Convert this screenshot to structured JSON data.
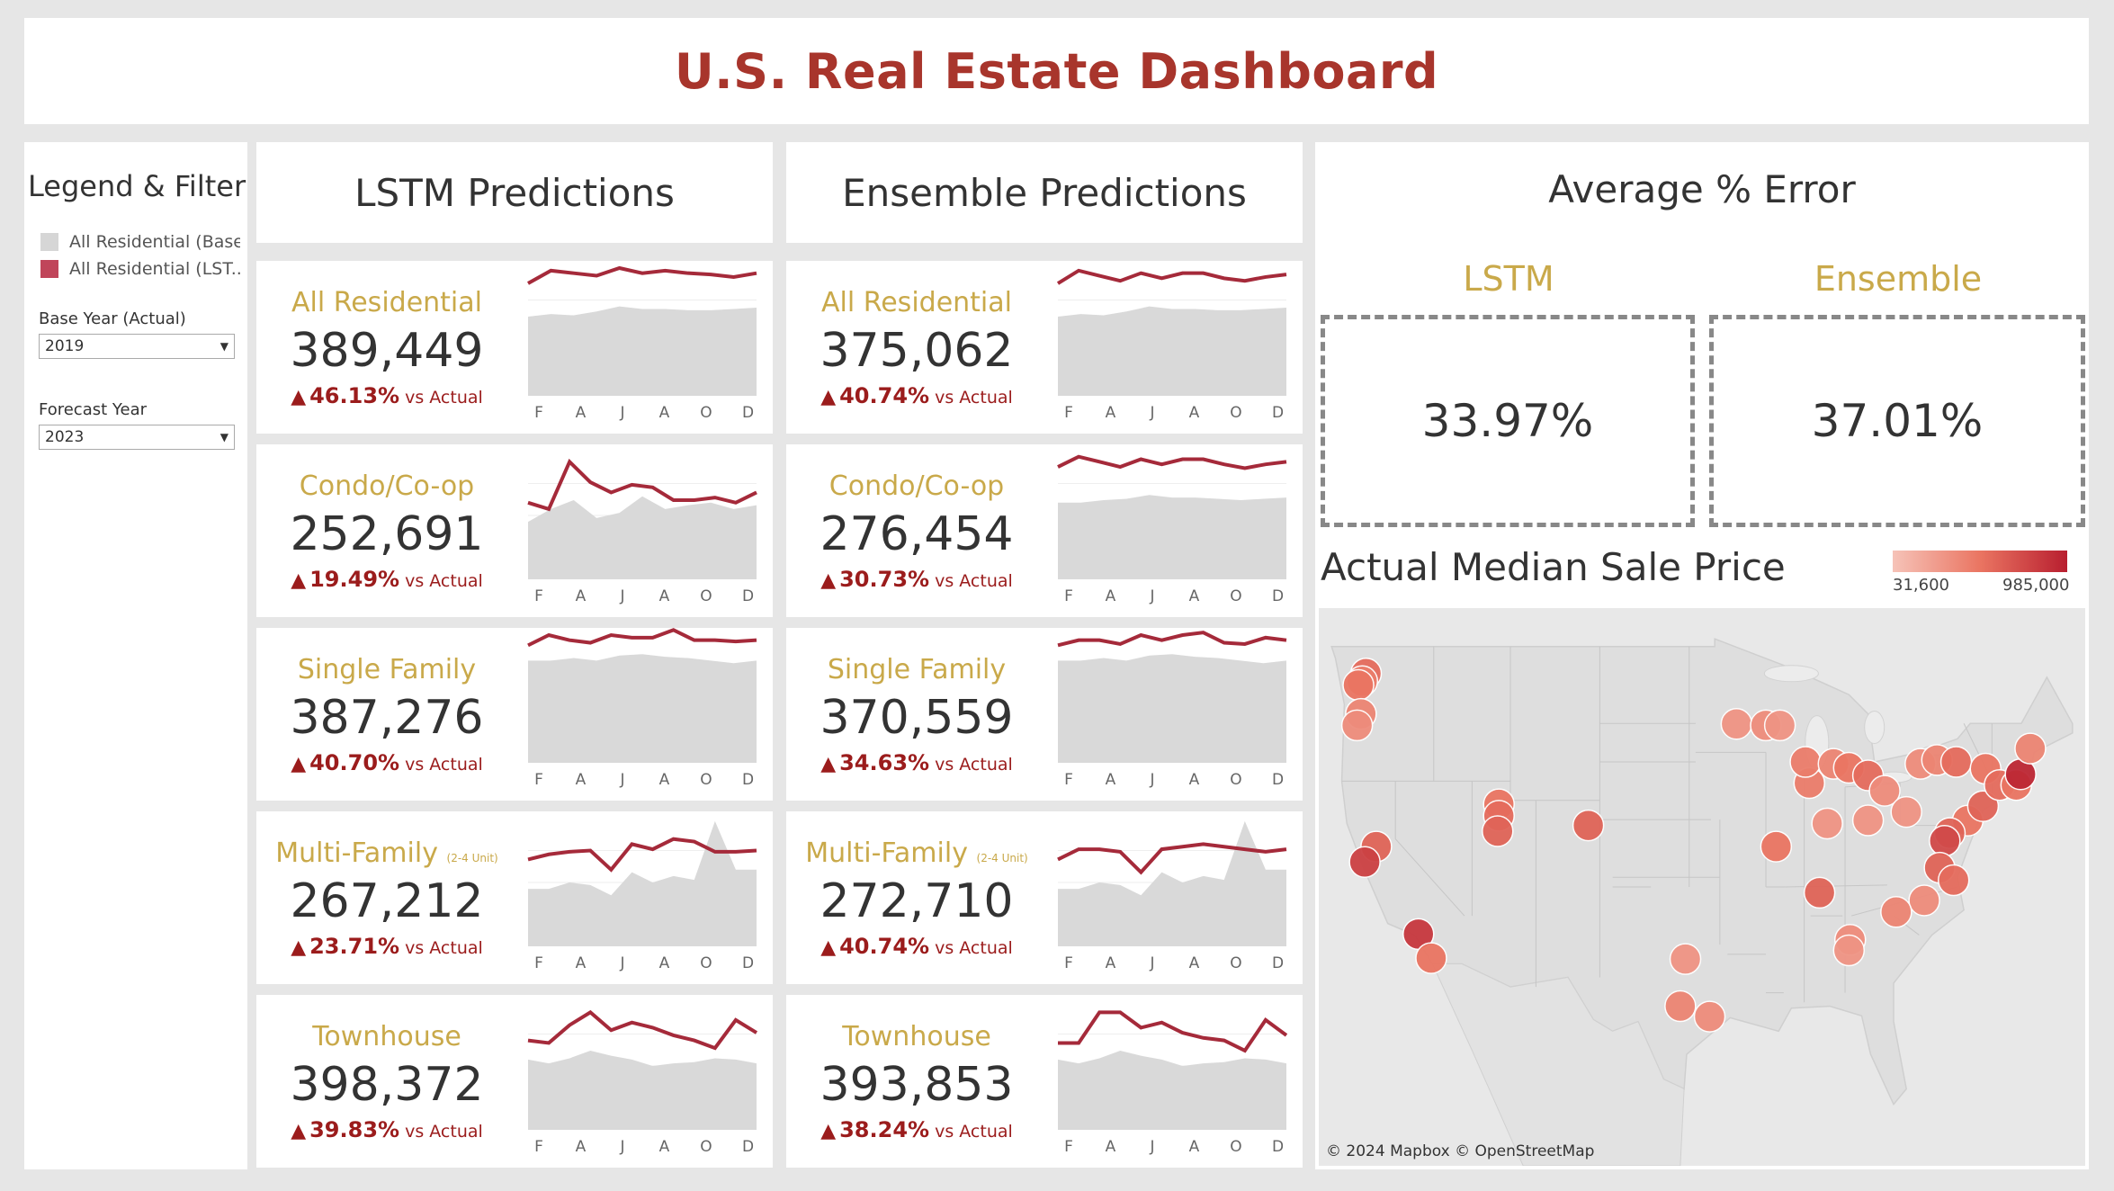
{
  "title": "U.S. Real Estate Dashboard",
  "legend": {
    "title": "Legend & Filter",
    "items": [
      {
        "label": "All Residential (Base)",
        "color": "#d6d6d6"
      },
      {
        "label": "All Residential (LST...",
        "color": "#c0455a"
      }
    ],
    "base_year_label": "Base Year (Actual)",
    "base_year_value": "2019",
    "forecast_year_label": "Forecast Year",
    "forecast_year_value": "2023"
  },
  "columns": [
    {
      "header": "LSTM Predictions",
      "cards": [
        {
          "category": "All Residential",
          "suffix": "",
          "value": "389,449",
          "pct": "46.13%",
          "vs": "vs Actual"
        },
        {
          "category": "Condo/Co-op",
          "suffix": "",
          "value": "252,691",
          "pct": "19.49%",
          "vs": "vs Actual"
        },
        {
          "category": "Single Family",
          "suffix": "",
          "value": "387,276",
          "pct": "40.70%",
          "vs": "vs Actual"
        },
        {
          "category": "Multi-Family",
          "suffix": "(2-4 Unit)",
          "value": "267,212",
          "pct": "23.71%",
          "vs": "vs Actual"
        },
        {
          "category": "Townhouse",
          "suffix": "",
          "value": "398,372",
          "pct": "39.83%",
          "vs": "vs Actual"
        }
      ]
    },
    {
      "header": "Ensemble Predictions",
      "cards": [
        {
          "category": "All Residential",
          "suffix": "",
          "value": "375,062",
          "pct": "40.74%",
          "vs": "vs Actual"
        },
        {
          "category": "Condo/Co-op",
          "suffix": "",
          "value": "276,454",
          "pct": "30.73%",
          "vs": "vs Actual"
        },
        {
          "category": "Single Family",
          "suffix": "",
          "value": "370,559",
          "pct": "34.63%",
          "vs": "vs Actual"
        },
        {
          "category": "Multi-Family",
          "suffix": "(2-4 Unit)",
          "value": "272,710",
          "pct": "40.74%",
          "vs": "vs Actual"
        },
        {
          "category": "Townhouse",
          "suffix": "",
          "value": "393,853",
          "pct": "38.24%",
          "vs": "vs Actual"
        }
      ]
    }
  ],
  "spark_months": [
    "F",
    "A",
    "J",
    "A",
    "O",
    "D"
  ],
  "sparklines": {
    "lstm": [
      {
        "base": [
          0.62,
          0.64,
          0.63,
          0.66,
          0.7,
          0.68,
          0.68,
          0.67,
          0.67,
          0.68,
          0.69
        ],
        "pred": [
          0.88,
          0.98,
          0.96,
          0.94,
          1.0,
          0.96,
          0.98,
          0.96,
          0.95,
          0.93,
          0.96
        ]
      },
      {
        "base": [
          0.45,
          0.55,
          0.62,
          0.48,
          0.52,
          0.65,
          0.55,
          0.58,
          0.6,
          0.55,
          0.58
        ],
        "pred": [
          0.6,
          0.55,
          0.92,
          0.76,
          0.68,
          0.74,
          0.72,
          0.62,
          0.62,
          0.64,
          0.6,
          0.68
        ]
      },
      {
        "base": [
          0.8,
          0.8,
          0.82,
          0.8,
          0.84,
          0.85,
          0.83,
          0.82,
          0.8,
          0.78,
          0.8
        ],
        "pred": [
          0.92,
          1.0,
          0.96,
          0.94,
          1.0,
          0.98,
          0.98,
          1.04,
          0.96,
          0.96,
          0.95,
          0.96
        ]
      },
      {
        "base": [
          0.45,
          0.45,
          0.5,
          0.48,
          0.4,
          0.58,
          0.5,
          0.55,
          0.52,
          0.98,
          0.6,
          0.6
        ],
        "pred": [
          0.68,
          0.72,
          0.74,
          0.75,
          0.6,
          0.8,
          0.76,
          0.84,
          0.82,
          0.74,
          0.74,
          0.75
        ]
      },
      {
        "base": [
          0.55,
          0.52,
          0.56,
          0.62,
          0.58,
          0.55,
          0.5,
          0.52,
          0.53,
          0.56,
          0.55,
          0.52
        ],
        "pred": [
          0.7,
          0.68,
          0.82,
          0.92,
          0.78,
          0.84,
          0.8,
          0.74,
          0.7,
          0.64,
          0.86,
          0.76
        ]
      }
    ],
    "ensemble": [
      {
        "base": [
          0.62,
          0.64,
          0.63,
          0.66,
          0.7,
          0.68,
          0.68,
          0.67,
          0.67,
          0.68,
          0.69
        ],
        "pred": [
          0.88,
          0.98,
          0.94,
          0.9,
          0.96,
          0.92,
          0.96,
          0.96,
          0.92,
          0.9,
          0.93,
          0.95
        ]
      },
      {
        "base": [
          0.6,
          0.6,
          0.62,
          0.63,
          0.66,
          0.64,
          0.64,
          0.63,
          0.62,
          0.63,
          0.64
        ],
        "pred": [
          0.88,
          0.96,
          0.92,
          0.88,
          0.94,
          0.9,
          0.94,
          0.94,
          0.9,
          0.87,
          0.9,
          0.92
        ]
      },
      {
        "base": [
          0.8,
          0.8,
          0.82,
          0.8,
          0.84,
          0.85,
          0.83,
          0.82,
          0.8,
          0.78,
          0.8
        ],
        "pred": [
          0.92,
          0.96,
          0.96,
          0.93,
          1.0,
          0.96,
          1.0,
          1.02,
          0.94,
          0.93,
          0.98,
          0.96
        ]
      },
      {
        "base": [
          0.45,
          0.45,
          0.5,
          0.48,
          0.4,
          0.58,
          0.5,
          0.55,
          0.52,
          0.98,
          0.6,
          0.6
        ],
        "pred": [
          0.68,
          0.76,
          0.76,
          0.74,
          0.58,
          0.76,
          0.78,
          0.8,
          0.78,
          0.76,
          0.74,
          0.76
        ]
      },
      {
        "base": [
          0.55,
          0.52,
          0.56,
          0.62,
          0.58,
          0.55,
          0.5,
          0.52,
          0.53,
          0.56,
          0.55,
          0.52
        ],
        "pred": [
          0.68,
          0.68,
          0.92,
          0.92,
          0.8,
          0.84,
          0.76,
          0.72,
          0.7,
          0.62,
          0.86,
          0.74
        ]
      }
    ]
  },
  "avg_error": {
    "title": "Average % Error",
    "lstm_label": "LSTM",
    "lstm_value": "33.97%",
    "ensemble_label": "Ensemble",
    "ensemble_value": "37.01%"
  },
  "map": {
    "title": "Actual Median Sale Price",
    "legend_min": "31,600",
    "legend_max": "985,000",
    "credit": "© 2024 Mapbox  © OpenStreetMap",
    "points": [
      {
        "lon": -122.3,
        "lat": 47.6,
        "v": 0.55
      },
      {
        "lon": -122.6,
        "lat": 47.2,
        "v": 0.45
      },
      {
        "lon": -122.9,
        "lat": 47.0,
        "v": 0.5
      },
      {
        "lon": -122.7,
        "lat": 45.5,
        "v": 0.4
      },
      {
        "lon": -123.0,
        "lat": 44.9,
        "v": 0.35
      },
      {
        "lon": -121.5,
        "lat": 38.6,
        "v": 0.6
      },
      {
        "lon": -122.4,
        "lat": 37.8,
        "v": 0.8
      },
      {
        "lon": -118.2,
        "lat": 34.05,
        "v": 0.85
      },
      {
        "lon": -117.2,
        "lat": 32.8,
        "v": 0.5
      },
      {
        "lon": -111.9,
        "lat": 40.8,
        "v": 0.5
      },
      {
        "lon": -111.9,
        "lat": 40.2,
        "v": 0.55
      },
      {
        "lon": -112.0,
        "lat": 39.4,
        "v": 0.6
      },
      {
        "lon": -104.9,
        "lat": 39.7,
        "v": 0.6
      },
      {
        "lon": -93.3,
        "lat": 44.98,
        "v": 0.3
      },
      {
        "lon": -91.0,
        "lat": 44.9,
        "v": 0.35
      },
      {
        "lon": -89.9,
        "lat": 44.9,
        "v": 0.3
      },
      {
        "lon": -90.2,
        "lat": 38.6,
        "v": 0.5
      },
      {
        "lon": -87.6,
        "lat": 41.9,
        "v": 0.45
      },
      {
        "lon": -87.9,
        "lat": 43.0,
        "v": 0.45
      },
      {
        "lon": -86.2,
        "lat": 39.8,
        "v": 0.3
      },
      {
        "lon": -85.7,
        "lat": 42.9,
        "v": 0.4
      },
      {
        "lon": -84.5,
        "lat": 42.7,
        "v": 0.5
      },
      {
        "lon": -83.0,
        "lat": 42.3,
        "v": 0.55
      },
      {
        "lon": -83.0,
        "lat": 39.96,
        "v": 0.3
      },
      {
        "lon": -81.7,
        "lat": 41.5,
        "v": 0.35
      },
      {
        "lon": -80.0,
        "lat": 40.4,
        "v": 0.3
      },
      {
        "lon": -78.9,
        "lat": 42.9,
        "v": 0.35
      },
      {
        "lon": -77.6,
        "lat": 43.1,
        "v": 0.4
      },
      {
        "lon": -76.1,
        "lat": 43.0,
        "v": 0.55
      },
      {
        "lon": -75.2,
        "lat": 39.95,
        "v": 0.5
      },
      {
        "lon": -74.0,
        "lat": 40.7,
        "v": 0.6
      },
      {
        "lon": -73.8,
        "lat": 42.65,
        "v": 0.5
      },
      {
        "lon": -72.7,
        "lat": 41.8,
        "v": 0.55
      },
      {
        "lon": -71.4,
        "lat": 41.8,
        "v": 0.5
      },
      {
        "lon": -71.06,
        "lat": 42.36,
        "v": 0.95
      },
      {
        "lon": -70.3,
        "lat": 43.7,
        "v": 0.4
      },
      {
        "lon": -76.6,
        "lat": 39.3,
        "v": 0.6
      },
      {
        "lon": -77.0,
        "lat": 38.9,
        "v": 0.75
      },
      {
        "lon": -77.4,
        "lat": 37.5,
        "v": 0.6
      },
      {
        "lon": -76.3,
        "lat": 36.85,
        "v": 0.55
      },
      {
        "lon": -78.6,
        "lat": 35.8,
        "v": 0.35
      },
      {
        "lon": -80.8,
        "lat": 35.2,
        "v": 0.4
      },
      {
        "lon": -84.4,
        "lat": 33.75,
        "v": 0.35
      },
      {
        "lon": -84.5,
        "lat": 33.2,
        "v": 0.3
      },
      {
        "lon": -86.8,
        "lat": 36.2,
        "v": 0.6
      },
      {
        "lon": -97.7,
        "lat": 30.3,
        "v": 0.4
      },
      {
        "lon": -97.3,
        "lat": 32.75,
        "v": 0.3
      },
      {
        "lon": -95.4,
        "lat": 29.76,
        "v": 0.35
      }
    ]
  }
}
